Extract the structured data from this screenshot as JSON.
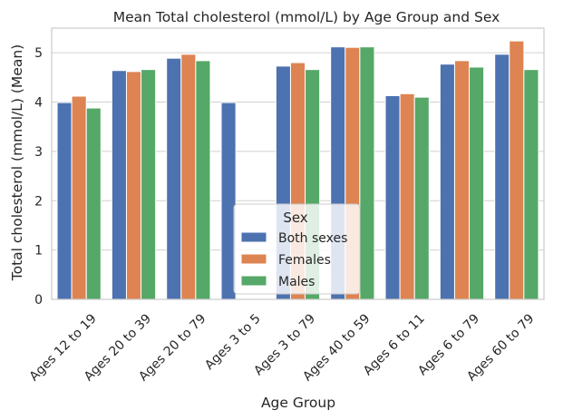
{
  "chart_data": {
    "type": "bar",
    "title": "Mean Total cholesterol (mmol/L) by Age Group and Sex",
    "xlabel": "Age Group",
    "ylabel": "Total cholesterol (mmol/L) (Mean)",
    "ylim": [
      0,
      5.5
    ],
    "yticks": [
      0,
      1,
      2,
      3,
      4,
      5
    ],
    "grid": true,
    "legend_position": "lower center",
    "legend_title": "Sex",
    "categories": [
      "Ages 12 to 19",
      "Ages 20 to 39",
      "Ages 20 to 79",
      "Ages 3 to 5",
      "Ages 3 to 79",
      "Ages 40 to 59",
      "Ages 6 to 11",
      "Ages 6 to 79",
      "Ages 60 to 79"
    ],
    "series": [
      {
        "name": "Both sexes",
        "color": "#4c72b0",
        "values": [
          3.99,
          4.64,
          4.89,
          3.99,
          4.73,
          5.12,
          4.13,
          4.77,
          4.97
        ]
      },
      {
        "name": "Females",
        "color": "#dd8452",
        "values": [
          4.12,
          4.62,
          4.97,
          null,
          4.8,
          5.11,
          4.17,
          4.84,
          5.24
        ]
      },
      {
        "name": "Males",
        "color": "#55a868",
        "values": [
          3.88,
          4.66,
          4.84,
          null,
          4.66,
          5.12,
          4.1,
          4.71,
          4.66
        ]
      }
    ]
  }
}
